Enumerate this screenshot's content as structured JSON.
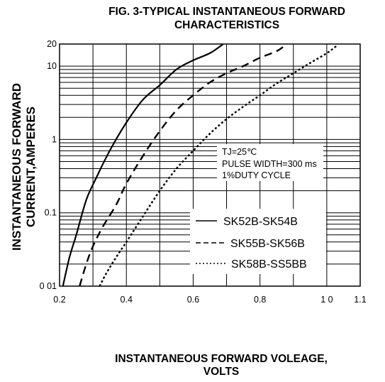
{
  "chart_data": {
    "type": "line",
    "title": [
      "FIG. 3-TYPICAL INSTANTANEOUS FORWARD",
      "CHARACTERISTICS"
    ],
    "xlabel": [
      "INSTANTANEOUS FORWARD VOLEAGE,",
      "VOLTS"
    ],
    "ylabel": [
      "INSTANTANEOUS FORWARD",
      "CURRENT,AMPERES"
    ],
    "xlim": [
      0.2,
      1.1
    ],
    "ylim": [
      0.01,
      20
    ],
    "yscale": "log",
    "grid": true,
    "x_ticks": [
      {
        "value": 0.2,
        "label": "0.2"
      },
      {
        "value": 0.4,
        "label": "0.4"
      },
      {
        "value": 0.6,
        "label": "0.6"
      },
      {
        "value": 0.8,
        "label": "0.8"
      },
      {
        "value": 1.0,
        "label": "1 0"
      },
      {
        "value": 1.1,
        "label": "1.1"
      }
    ],
    "y_ticks": [
      {
        "value": 0.01,
        "label": "0 01"
      },
      {
        "value": 0.1,
        "label": "0.1"
      },
      {
        "value": 1,
        "label": "1"
      },
      {
        "value": 10,
        "label": "10"
      },
      {
        "value": 20,
        "label": "20"
      }
    ],
    "conditions": [
      "TJ=25℃",
      "PULSE WIDTH=300 ms",
      "1%DUTY CYCLE"
    ],
    "legend_position": "bottom-right",
    "series": [
      {
        "name": "SK52B-SK54B",
        "style": "solid",
        "x": [
          0.21,
          0.23,
          0.25,
          0.28,
          0.31,
          0.35,
          0.4,
          0.45,
          0.5,
          0.55,
          0.6,
          0.65,
          0.69
        ],
        "y": [
          0.01,
          0.025,
          0.05,
          0.15,
          0.3,
          0.7,
          1.7,
          3.5,
          5.5,
          9,
          12,
          15,
          20
        ]
      },
      {
        "name": "SK55B-SK56B",
        "style": "dashed",
        "x": [
          0.26,
          0.28,
          0.3,
          0.33,
          0.37,
          0.4,
          0.45,
          0.5,
          0.55,
          0.6,
          0.65,
          0.7,
          0.75,
          0.8,
          0.85,
          0.88
        ],
        "y": [
          0.01,
          0.02,
          0.035,
          0.065,
          0.13,
          0.25,
          0.6,
          1.3,
          2.5,
          4,
          6,
          8,
          10,
          13,
          16,
          20
        ]
      },
      {
        "name": "SK58B-SS5BB",
        "style": "dotted",
        "x": [
          0.32,
          0.34,
          0.37,
          0.4,
          0.45,
          0.5,
          0.55,
          0.6,
          0.65,
          0.7,
          0.75,
          0.8,
          0.85,
          0.9,
          0.95,
          1.0,
          1.03
        ],
        "y": [
          0.01,
          0.015,
          0.025,
          0.04,
          0.09,
          0.2,
          0.4,
          0.7,
          1.2,
          1.9,
          2.8,
          4,
          5.8,
          8,
          11,
          15,
          19
        ]
      }
    ]
  }
}
